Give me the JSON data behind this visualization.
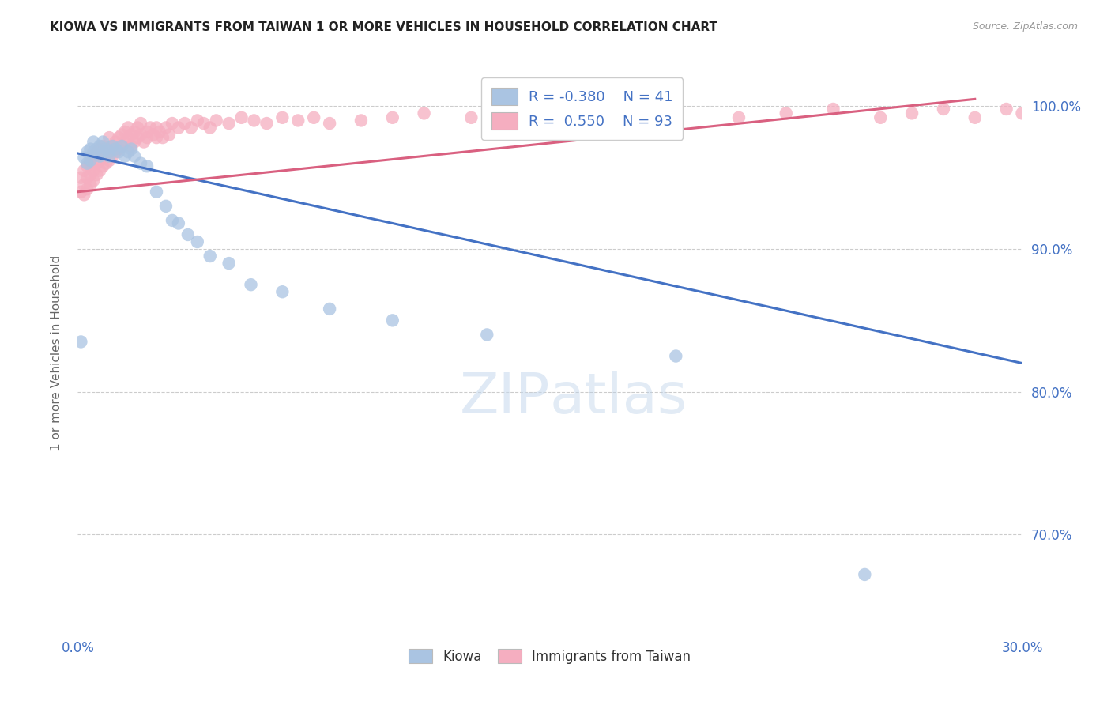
{
  "title": "KIOWA VS IMMIGRANTS FROM TAIWAN 1 OR MORE VEHICLES IN HOUSEHOLD CORRELATION CHART",
  "source": "Source: ZipAtlas.com",
  "ylabel": "1 or more Vehicles in Household",
  "xlim": [
    0.0,
    0.3
  ],
  "ylim": [
    0.63,
    1.025
  ],
  "xtick_pos": [
    0.0,
    0.05,
    0.1,
    0.15,
    0.2,
    0.25,
    0.3
  ],
  "xtick_labels": [
    "0.0%",
    "",
    "",
    "",
    "",
    "",
    "30.0%"
  ],
  "ytick_positions": [
    1.0,
    0.9,
    0.8,
    0.7
  ],
  "ytick_labels": [
    "100.0%",
    "90.0%",
    "80.0%",
    "70.0%"
  ],
  "legend_r_kiowa": "-0.380",
  "legend_n_kiowa": "41",
  "legend_r_taiwan": "0.550",
  "legend_n_taiwan": "93",
  "kiowa_color": "#aac4e2",
  "taiwan_color": "#f5aec0",
  "kiowa_line_color": "#4472c4",
  "taiwan_line_color": "#d96080",
  "watermark_zip": "ZIP",
  "watermark_atlas": "atlas",
  "background_color": "#ffffff",
  "grid_color": "#cccccc",
  "kiowa_x": [
    0.001,
    0.002,
    0.003,
    0.003,
    0.004,
    0.004,
    0.005,
    0.005,
    0.006,
    0.007,
    0.007,
    0.008,
    0.008,
    0.009,
    0.01,
    0.01,
    0.011,
    0.012,
    0.013,
    0.014,
    0.015,
    0.016,
    0.017,
    0.018,
    0.02,
    0.022,
    0.025,
    0.028,
    0.03,
    0.032,
    0.035,
    0.038,
    0.042,
    0.048,
    0.055,
    0.065,
    0.08,
    0.1,
    0.13,
    0.19,
    0.25
  ],
  "kiowa_y": [
    0.835,
    0.964,
    0.96,
    0.968,
    0.962,
    0.97,
    0.968,
    0.975,
    0.97,
    0.965,
    0.972,
    0.968,
    0.975,
    0.97,
    0.965,
    0.968,
    0.972,
    0.97,
    0.968,
    0.972,
    0.965,
    0.968,
    0.97,
    0.965,
    0.96,
    0.958,
    0.94,
    0.93,
    0.92,
    0.918,
    0.91,
    0.905,
    0.895,
    0.89,
    0.875,
    0.87,
    0.858,
    0.85,
    0.84,
    0.825,
    0.672
  ],
  "taiwan_x": [
    0.001,
    0.001,
    0.002,
    0.002,
    0.002,
    0.003,
    0.003,
    0.003,
    0.004,
    0.004,
    0.004,
    0.005,
    0.005,
    0.005,
    0.006,
    0.006,
    0.006,
    0.007,
    0.007,
    0.007,
    0.008,
    0.008,
    0.008,
    0.009,
    0.009,
    0.01,
    0.01,
    0.01,
    0.011,
    0.011,
    0.012,
    0.012,
    0.013,
    0.013,
    0.014,
    0.014,
    0.015,
    0.015,
    0.016,
    0.016,
    0.017,
    0.017,
    0.018,
    0.018,
    0.019,
    0.019,
    0.02,
    0.02,
    0.021,
    0.022,
    0.022,
    0.023,
    0.024,
    0.025,
    0.025,
    0.026,
    0.027,
    0.028,
    0.029,
    0.03,
    0.032,
    0.034,
    0.036,
    0.038,
    0.04,
    0.042,
    0.044,
    0.048,
    0.052,
    0.056,
    0.06,
    0.065,
    0.07,
    0.075,
    0.08,
    0.09,
    0.1,
    0.11,
    0.125,
    0.14,
    0.155,
    0.17,
    0.19,
    0.21,
    0.225,
    0.24,
    0.255,
    0.265,
    0.275,
    0.285,
    0.295,
    0.3,
    0.305
  ],
  "taiwan_y": [
    0.94,
    0.95,
    0.938,
    0.945,
    0.955,
    0.942,
    0.95,
    0.958,
    0.945,
    0.952,
    0.96,
    0.948,
    0.955,
    0.965,
    0.952,
    0.96,
    0.968,
    0.955,
    0.962,
    0.97,
    0.958,
    0.965,
    0.972,
    0.96,
    0.968,
    0.962,
    0.97,
    0.978,
    0.965,
    0.972,
    0.968,
    0.975,
    0.97,
    0.978,
    0.972,
    0.98,
    0.975,
    0.982,
    0.978,
    0.985,
    0.98,
    0.972,
    0.975,
    0.982,
    0.978,
    0.985,
    0.98,
    0.988,
    0.975,
    0.982,
    0.978,
    0.985,
    0.98,
    0.978,
    0.985,
    0.982,
    0.978,
    0.985,
    0.98,
    0.988,
    0.985,
    0.988,
    0.985,
    0.99,
    0.988,
    0.985,
    0.99,
    0.988,
    0.992,
    0.99,
    0.988,
    0.992,
    0.99,
    0.992,
    0.988,
    0.99,
    0.992,
    0.995,
    0.992,
    0.995,
    0.992,
    0.995,
    0.998,
    0.992,
    0.995,
    0.998,
    0.992,
    0.995,
    0.998,
    0.992,
    0.998,
    0.995,
    0.998
  ],
  "kiowa_line_x": [
    0.0,
    0.3
  ],
  "kiowa_line_y": [
    0.967,
    0.82
  ],
  "taiwan_line_x": [
    0.0,
    0.285
  ],
  "taiwan_line_y": [
    0.94,
    1.005
  ]
}
